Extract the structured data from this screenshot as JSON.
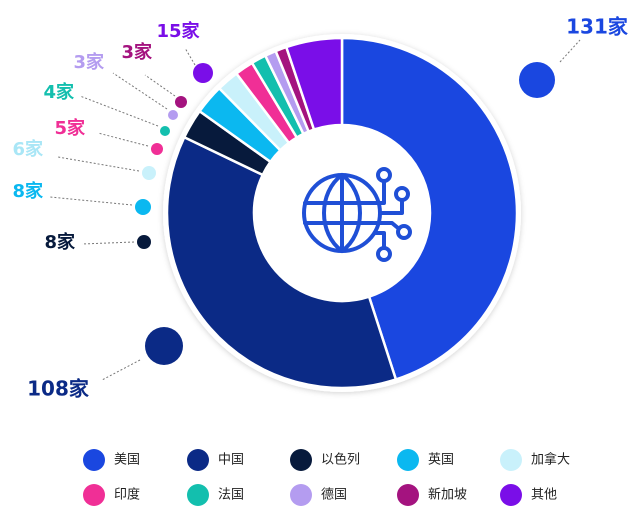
{
  "chart_data": {
    "type": "pie",
    "donut": true,
    "center_icon": "globe-network-icon",
    "value_suffix": "家",
    "categories": [
      "美国",
      "中国",
      "以色列",
      "英国",
      "加拿大",
      "印度",
      "法国",
      "德国",
      "新加坡",
      "其他"
    ],
    "values": [
      131,
      108,
      8,
      8,
      6,
      5,
      4,
      3,
      3,
      15
    ],
    "callouts": [
      "131家",
      "108家",
      "8家",
      "8家",
      "6家",
      "5家",
      "4家",
      "3家",
      "3家",
      "15家"
    ],
    "colors": [
      "#1a47e0",
      "#0b2a86",
      "#071a3c",
      "#0bb8f0",
      "#c9f1fb",
      "#f02f96",
      "#13bfae",
      "#b49cf0",
      "#a4137f",
      "#7a0ee8"
    ],
    "legend": {
      "position": "bottom",
      "columns": 5
    }
  }
}
